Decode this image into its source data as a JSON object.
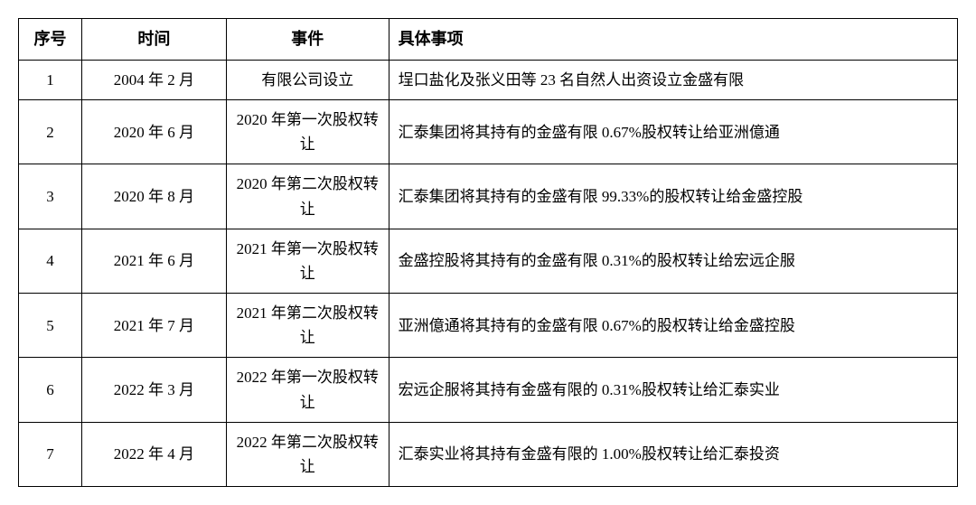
{
  "table": {
    "headers": {
      "seq": "序号",
      "time": "时间",
      "event": "事件",
      "detail": "具体事项"
    },
    "rows": [
      {
        "seq": "1",
        "time": "2004 年 2 月",
        "event": "有限公司设立",
        "detail": "埕口盐化及张义田等 23 名自然人出资设立金盛有限"
      },
      {
        "seq": "2",
        "time": "2020 年 6 月",
        "event": "2020 年第一次股权转让",
        "detail": "汇泰集团将其持有的金盛有限 0.67%股权转让给亚洲億通"
      },
      {
        "seq": "3",
        "time": "2020 年 8 月",
        "event": "2020 年第二次股权转让",
        "detail": "汇泰集团将其持有的金盛有限 99.33%的股权转让给金盛控股"
      },
      {
        "seq": "4",
        "time": "2021 年 6 月",
        "event": "2021 年第一次股权转让",
        "detail": "金盛控股将其持有的金盛有限 0.31%的股权转让给宏远企服"
      },
      {
        "seq": "5",
        "time": "2021 年 7 月",
        "event": "2021 年第二次股权转让",
        "detail": "亚洲億通将其持有的金盛有限 0.67%的股权转让给金盛控股"
      },
      {
        "seq": "6",
        "time": "2022 年 3 月",
        "event": "2022 年第一次股权转让",
        "detail": "宏远企服将其持有金盛有限的 0.31%股权转让给汇泰实业"
      },
      {
        "seq": "7",
        "time": "2022 年 4 月",
        "event": "2022 年第二次股权转让",
        "detail": "汇泰实业将其持有金盛有限的 1.00%股权转让给汇泰投资"
      }
    ],
    "styling": {
      "border_color": "#000000",
      "border_width": 1.5,
      "background_color": "#ffffff",
      "header_font_weight": "bold",
      "header_font_size": 18,
      "cell_font_size": 17,
      "font_family": "SimSun",
      "col_widths": {
        "seq": 70,
        "time": 160,
        "event": 180,
        "detail": 630
      },
      "col_align": {
        "seq": "center",
        "time": "center",
        "event": "center",
        "detail": "left"
      }
    }
  }
}
